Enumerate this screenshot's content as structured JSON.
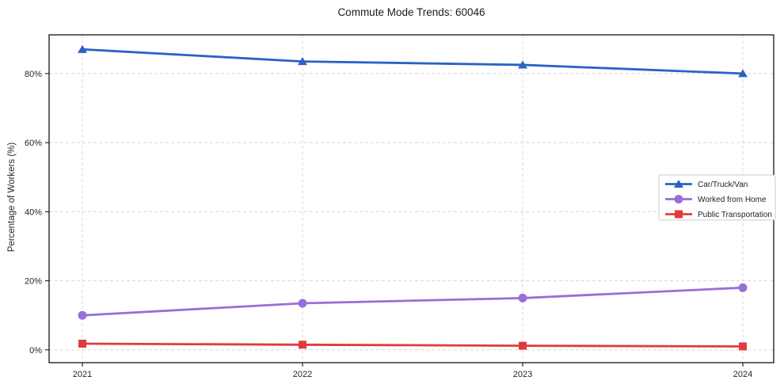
{
  "page": {
    "background": "#ffffff"
  },
  "chart_data": {
    "type": "line",
    "title": "Commute Mode Trends: 60046",
    "xlabel": "",
    "ylabel": "Percentage of Workers (%)",
    "categories": [
      "2021",
      "2022",
      "2023",
      "2024"
    ],
    "series": [
      {
        "name": "Car/Truck/Van",
        "marker": "triangle",
        "color": "#2b62c6",
        "values": [
          87,
          83.5,
          82.5,
          80
        ]
      },
      {
        "name": "Worked from Home",
        "marker": "circle",
        "color": "#976fd6",
        "values": [
          10,
          13.5,
          15,
          18
        ]
      },
      {
        "name": "Public Transportation",
        "marker": "square",
        "color": "#e03b3e",
        "values": [
          1.8,
          1.5,
          1.2,
          1.0
        ]
      }
    ],
    "ylim": [
      -3.7,
      91.2
    ],
    "yticks": [
      0,
      20,
      40,
      60,
      80
    ],
    "ytick_labels": [
      "0%",
      "20%",
      "40%",
      "60%",
      "80%"
    ],
    "grid": true,
    "grid_style": "dashed",
    "grid_color": "#d8d8d8",
    "frame_color": "#000000",
    "tick_label_color": "#262626",
    "legend": {
      "position": "center-right",
      "border_color": "#cccccc",
      "background": "#ffffff"
    }
  }
}
